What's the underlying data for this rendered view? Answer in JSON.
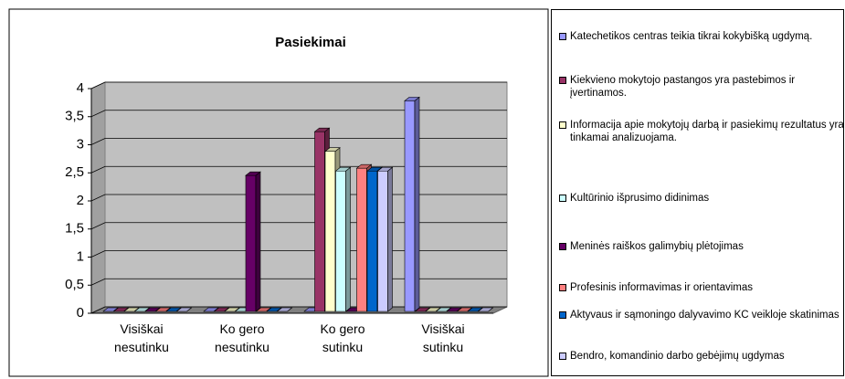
{
  "chart_data": {
    "type": "bar3d",
    "title": "Pasiekimai",
    "categories": [
      "Visiškai nesutinku",
      "Ko gero nesutinku",
      "Ko gero sutinku",
      "Visiškai sutinku"
    ],
    "ylim": [
      0,
      4
    ],
    "yticks": [
      0,
      {
        "value": 0.5,
        "label": "0,5"
      },
      1,
      {
        "value": 1.5,
        "label": "1,5"
      },
      2,
      {
        "value": 2.5,
        "label": "2,5"
      },
      3,
      {
        "value": 3.5,
        "label": "3,5"
      },
      4
    ],
    "grid": true,
    "legend": "right",
    "series": [
      {
        "name": "Katechetikos centras teikia tikrai kokybišką ugdymą.",
        "color": "#9999ff",
        "values": [
          0,
          0,
          0,
          3.75
        ]
      },
      {
        "name": "Kiekvieno mokytojo pastangos yra pastebimos ir įvertinamos.",
        "color": "#993366",
        "values": [
          0,
          0,
          3.2,
          0
        ]
      },
      {
        "name": "Informacija apie mokytojų darbą ir pasiekimų rezultatus yra tinkamai analizuojama.",
        "color": "#ffffcc",
        "values": [
          0,
          0,
          2.85,
          0
        ]
      },
      {
        "name": "Kultūrinio išprusimo didinimas",
        "color": "#ccffff",
        "values": [
          0,
          0,
          2.5,
          0
        ]
      },
      {
        "name": "Meninės raiškos galimybių plėtojimas",
        "color": "#660066",
        "values": [
          0,
          2.42,
          0,
          0
        ]
      },
      {
        "name": "Profesinis informavimas ir orientavimas",
        "color": "#ff8080",
        "values": [
          0,
          0,
          2.55,
          0
        ]
      },
      {
        "name": "Aktyvaus ir sąmoningo dalyvavimo KC veikloje skatinimas",
        "color": "#0066cc",
        "values": [
          0,
          0,
          2.5,
          0
        ]
      },
      {
        "name": "Bendro, komandinio darbo gebėjimų ugdymas",
        "color": "#ccccff",
        "values": [
          0,
          0,
          2.5,
          0
        ]
      }
    ]
  }
}
